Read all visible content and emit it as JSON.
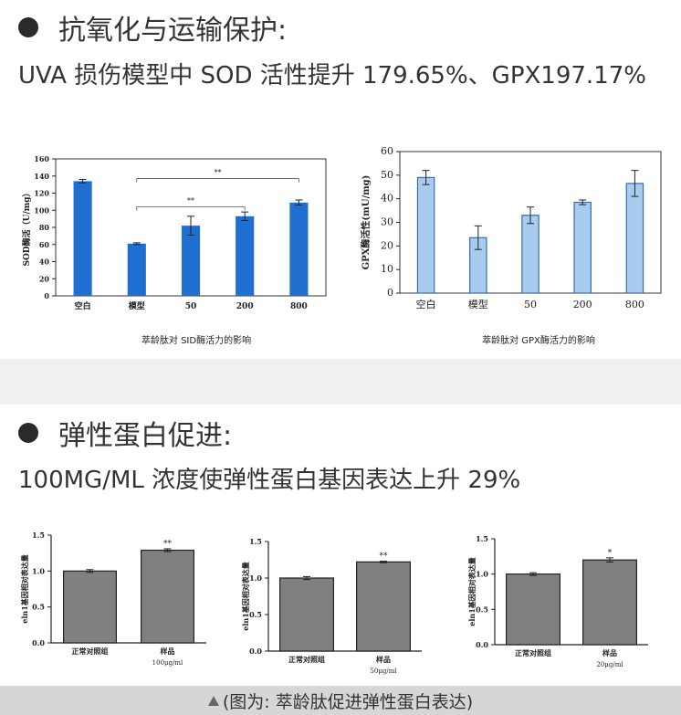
{
  "section1": {
    "heading": "抗氧化与运输保护:",
    "subline": "UVA 损伤模型中 SOD 活性提升 179.65%、GPX197.17%",
    "caption_left": "萃龄肽对 SID酶活力的影响",
    "caption_right": "萃龄肽对 GPX酶活力的影响"
  },
  "section2": {
    "heading": "弹性蛋白促进:",
    "subline": "100MG/ML 浓度使弹性蛋白基因表达上升 29%"
  },
  "footer": {
    "text": "(图为: 萃龄肽促进弹性蛋白表达)"
  },
  "colors": {
    "sod_bar": "#1f6fd0",
    "gpx_bar": "#a8cbf0",
    "eln_bar": "#808080"
  },
  "chart_data": [
    {
      "type": "bar",
      "ylabel": "SOD酶活（U/mg）",
      "categories": [
        "空白",
        "模型",
        "50",
        "200",
        "800"
      ],
      "values": [
        134,
        61,
        82,
        93,
        109
      ],
      "errors": [
        2,
        1,
        11,
        5,
        3
      ],
      "ylim": [
        0,
        160
      ],
      "yticks": [
        0,
        20,
        40,
        60,
        80,
        100,
        120,
        140,
        160
      ],
      "significance": [
        {
          "from": 1,
          "to": 4,
          "label": "**"
        },
        {
          "from": 1,
          "to": 3,
          "label": "**"
        }
      ],
      "grid": false
    },
    {
      "type": "bar",
      "ylabel": "GPX酶活性(mU/mg)",
      "categories": [
        "空白",
        "模型",
        "50",
        "200",
        "800"
      ],
      "values": [
        49,
        23.5,
        33,
        38.5,
        46.5
      ],
      "errors": [
        3,
        5,
        3.5,
        1,
        5.5
      ],
      "ylim": [
        0,
        60
      ],
      "yticks": [
        0,
        10,
        20,
        30,
        40,
        50,
        60
      ],
      "grid": false
    },
    {
      "type": "bar",
      "ylabel": "eln1基因相对表达量",
      "categories": [
        "正常对照组",
        "样品"
      ],
      "sublabels": [
        "",
        "100μg/ml"
      ],
      "values": [
        1.0,
        1.29
      ],
      "errors": [
        0.02,
        0.02
      ],
      "stars": [
        "",
        "**"
      ],
      "ylim": [
        0,
        1.5
      ],
      "yticks": [
        "0.0",
        "0.5",
        "1.0",
        "1.5"
      ]
    },
    {
      "type": "bar",
      "ylabel": "eln1基因相对表达量",
      "categories": [
        "正常对照组",
        "样品"
      ],
      "sublabels": [
        "",
        "50μg/ml"
      ],
      "values": [
        1.0,
        1.22
      ],
      "errors": [
        0.02,
        0.01
      ],
      "stars": [
        "",
        "**"
      ],
      "ylim": [
        0,
        1.5
      ],
      "yticks": [
        "0.0",
        "0.5",
        "1.0",
        "1.5"
      ]
    },
    {
      "type": "bar",
      "ylabel": "eln1基因相对表达量",
      "categories": [
        "正常对照组",
        "样品"
      ],
      "sublabels": [
        "",
        "20μg/ml"
      ],
      "values": [
        1.0,
        1.2
      ],
      "errors": [
        0.02,
        0.03
      ],
      "stars": [
        "",
        "*"
      ],
      "ylim": [
        0,
        1.5
      ],
      "yticks": [
        "0.0",
        "0.5",
        "1.0",
        "1.5"
      ]
    }
  ]
}
